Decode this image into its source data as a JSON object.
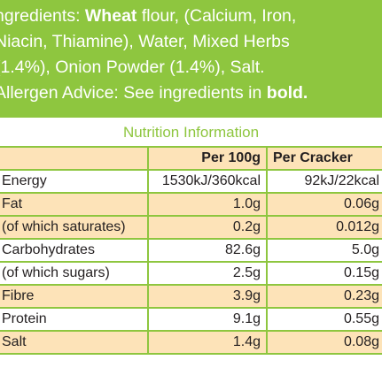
{
  "ingredients": {
    "line1_prefix": "ngredients: ",
    "line1_bold": "Wheat",
    "line1_rest": " flour, (Calcium, Iron,",
    "line2": "Niacin, Thiamine), Water, Mixed Herbs",
    "line3": "(1.4%), Onion Powder (1.4%), Salt.",
    "line4_prefix": "Allergen Advice: See ingredients in ",
    "line4_bold": "bold."
  },
  "nutrition": {
    "title": "Nutrition Information",
    "headers": [
      "",
      "Per 100g",
      "Per Cracker"
    ],
    "rows": [
      {
        "label": "Energy",
        "per100": "1530kJ/360kcal",
        "per_item": "92kJ/22kcal"
      },
      {
        "label": "Fat",
        "per100": "1.0g",
        "per_item": "0.06g"
      },
      {
        "label": "(of which saturates)",
        "per100": "0.2g",
        "per_item": "0.012g"
      },
      {
        "label": "Carbohydrates",
        "per100": "82.6g",
        "per_item": "5.0g"
      },
      {
        "label": "(of which sugars)",
        "per100": "2.5g",
        "per_item": "0.15g"
      },
      {
        "label": "Fibre",
        "per100": "3.9g",
        "per_item": "0.23g"
      },
      {
        "label": "Protein",
        "per100": "9.1g",
        "per_item": "0.55g"
      },
      {
        "label": "Salt",
        "per100": "1.4g",
        "per_item": "0.08g"
      }
    ]
  },
  "colors": {
    "brand_green": "#8ec63f",
    "row_tint": "#fde3b8",
    "text": "#231f20"
  }
}
